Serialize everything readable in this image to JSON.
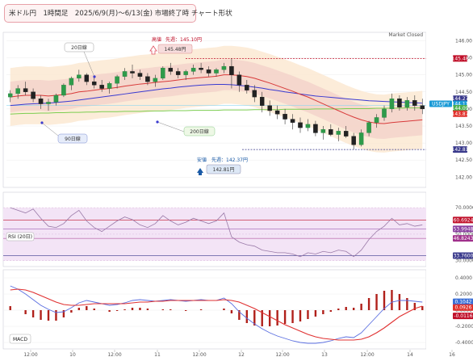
{
  "title": "米ドル円　1時間足　2025/6/9(月)～6/13(金) 市場終了時 チャート形状",
  "market_status": "Market Closed",
  "chart_data": [
    {
      "type": "candlestick",
      "panel": "price",
      "y_ticks": [
        "146.00",
        "145.50",
        "145.00",
        "144.50",
        "144.00",
        "143.50",
        "143.00",
        "142.50",
        "142.00"
      ],
      "ylim": [
        141.7,
        146.2
      ],
      "x_ticks": [
        "12:00",
        "10",
        "12:00",
        "11",
        "12:00",
        "12",
        "12:00",
        "13",
        "12:00",
        "14",
        "16"
      ],
      "candles": [
        [
          144.35,
          144.55,
          144.2,
          144.45
        ],
        [
          144.45,
          144.7,
          144.3,
          144.6
        ],
        [
          144.6,
          144.8,
          144.4,
          144.5
        ],
        [
          144.5,
          144.6,
          144.2,
          144.3
        ],
        [
          144.3,
          144.4,
          144.0,
          144.15
        ],
        [
          144.15,
          144.3,
          143.95,
          144.2
        ],
        [
          144.2,
          144.45,
          144.1,
          144.4
        ],
        [
          144.4,
          144.75,
          144.35,
          144.7
        ],
        [
          144.7,
          144.95,
          144.55,
          144.9
        ],
        [
          144.9,
          145.15,
          144.8,
          145.0
        ],
        [
          145.0,
          145.05,
          144.7,
          144.8
        ],
        [
          144.8,
          144.95,
          144.6,
          144.7
        ],
        [
          144.7,
          144.85,
          144.5,
          144.6
        ],
        [
          144.6,
          144.8,
          144.45,
          144.75
        ],
        [
          144.75,
          145.0,
          144.6,
          144.95
        ],
        [
          144.95,
          145.2,
          144.85,
          145.1
        ],
        [
          145.1,
          145.3,
          144.9,
          145.05
        ],
        [
          145.05,
          145.15,
          144.85,
          144.95
        ],
        [
          144.95,
          145.05,
          144.7,
          144.8
        ],
        [
          144.8,
          145.0,
          144.65,
          144.9
        ],
        [
          144.9,
          145.25,
          144.85,
          145.2
        ],
        [
          145.2,
          145.35,
          145.0,
          145.1
        ],
        [
          145.1,
          145.2,
          144.9,
          145.0
        ],
        [
          145.0,
          145.15,
          144.85,
          145.1
        ],
        [
          145.1,
          145.3,
          145.0,
          145.2
        ],
        [
          145.2,
          145.35,
          145.05,
          145.15
        ],
        [
          145.15,
          145.25,
          144.95,
          145.05
        ],
        [
          145.05,
          145.2,
          144.95,
          145.15
        ],
        [
          145.15,
          145.35,
          145.05,
          145.25
        ],
        [
          145.25,
          145.48,
          144.6,
          145.0
        ],
        [
          145.0,
          145.1,
          144.5,
          144.7
        ],
        [
          144.7,
          144.85,
          144.45,
          144.55
        ],
        [
          144.55,
          144.7,
          144.2,
          144.35
        ],
        [
          144.35,
          144.5,
          143.9,
          144.1
        ],
        [
          144.1,
          144.25,
          143.8,
          143.95
        ],
        [
          143.95,
          144.1,
          143.7,
          143.85
        ],
        [
          143.85,
          144.0,
          143.55,
          143.7
        ],
        [
          143.7,
          143.85,
          143.4,
          143.6
        ],
        [
          143.6,
          143.75,
          143.3,
          143.45
        ],
        [
          143.45,
          143.7,
          143.35,
          143.55
        ],
        [
          143.55,
          143.65,
          143.2,
          143.3
        ],
        [
          143.3,
          143.5,
          143.1,
          143.4
        ],
        [
          143.4,
          143.55,
          143.2,
          143.25
        ],
        [
          143.25,
          143.45,
          143.05,
          143.35
        ],
        [
          143.35,
          143.5,
          143.15,
          143.2
        ],
        [
          143.2,
          143.3,
          142.81,
          142.95
        ],
        [
          142.95,
          143.4,
          142.9,
          143.3
        ],
        [
          143.3,
          143.65,
          143.2,
          143.6
        ],
        [
          143.6,
          143.85,
          143.45,
          143.75
        ],
        [
          143.75,
          144.1,
          143.65,
          144.0
        ],
        [
          144.0,
          144.45,
          143.9,
          144.3
        ],
        [
          144.3,
          144.4,
          143.95,
          144.05
        ],
        [
          144.05,
          144.35,
          143.95,
          144.25
        ],
        [
          144.25,
          144.4,
          143.95,
          144.1
        ],
        [
          144.1,
          144.3,
          143.85,
          144.0
        ]
      ],
      "ma_20": [
        144.35,
        144.38,
        144.4,
        144.4,
        144.4,
        144.38,
        144.4,
        144.42,
        144.45,
        144.5,
        144.52,
        144.55,
        144.58,
        144.6,
        144.63,
        144.67,
        144.7,
        144.73,
        144.75,
        144.78,
        144.8,
        144.82,
        144.85,
        144.88,
        144.9,
        144.92,
        144.94,
        144.96,
        145.0,
        145.0,
        144.98,
        144.95,
        144.9,
        144.83,
        144.76,
        144.68,
        144.6,
        144.52,
        144.43,
        144.35,
        144.25,
        144.15,
        144.05,
        143.95,
        143.85,
        143.76,
        143.68,
        143.62,
        143.58,
        143.57,
        143.6,
        143.62,
        143.64,
        143.66,
        143.68
      ],
      "ma_90": [
        144.1,
        144.12,
        144.14,
        144.15,
        144.16,
        144.17,
        144.19,
        144.21,
        144.23,
        144.26,
        144.29,
        144.32,
        144.35,
        144.38,
        144.41,
        144.44,
        144.47,
        144.5,
        144.53,
        144.56,
        144.59,
        144.61,
        144.64,
        144.66,
        144.68,
        144.7,
        144.71,
        144.72,
        144.72,
        144.71,
        144.69,
        144.67,
        144.64,
        144.61,
        144.57,
        144.54,
        144.5,
        144.47,
        144.44,
        144.41,
        144.38,
        144.36,
        144.34,
        144.32,
        144.3,
        144.28,
        144.26,
        144.24,
        144.23,
        144.22,
        144.21,
        144.2,
        144.19,
        144.18,
        144.17
      ],
      "ma_200": [
        143.85,
        143.86,
        143.87,
        143.87,
        143.88,
        143.88,
        143.89,
        143.89,
        143.9,
        143.9,
        143.91,
        143.91,
        143.92,
        143.92,
        143.92,
        143.93,
        143.93,
        143.93,
        143.94,
        143.94,
        143.94,
        143.95,
        143.95,
        143.95,
        143.96,
        143.96,
        143.96,
        143.96,
        143.97,
        143.97,
        143.97,
        143.97,
        143.98,
        143.98,
        143.98,
        143.98,
        143.99,
        143.99,
        143.99,
        143.99,
        144.0,
        144.0,
        144.0,
        144.0,
        144.01,
        144.01,
        144.01,
        144.01,
        144.02,
        144.02,
        144.02,
        144.02,
        144.03,
        144.03,
        144.03
      ],
      "price_tags": [
        {
          "label": "145.48",
          "value": 145.48,
          "color": "#c0102a"
        },
        {
          "label": "144.27",
          "value": 144.27,
          "color": "#3a3a8c"
        },
        {
          "label": "USDJPY",
          "value": 144.1,
          "color": "#1a9ad6"
        },
        {
          "label": "144.11",
          "value": 144.11,
          "color": "#1a9ad6"
        },
        {
          "label": "144.09",
          "value": 143.99,
          "color": "#4caf50"
        },
        {
          "label": "143.87",
          "value": 143.87,
          "color": "#e0302a"
        },
        {
          "label": "142.81",
          "value": 142.81,
          "color": "#3a3a8c"
        }
      ],
      "annotations": {
        "high_label": "高値",
        "high_prev_week": "先週：145.10円",
        "high_value": "145.48円",
        "low_label": "安値",
        "low_prev_week": "先週：142.37円",
        "low_value": "142.81円",
        "ma20_label": "20日線",
        "ma90_label": "90日線",
        "ma200_label": "200日線"
      }
    },
    {
      "type": "line",
      "panel": "rsi",
      "label": "RSI (20日)",
      "y_ticks": [
        "70.0000",
        "50.0000",
        "30.0000"
      ],
      "ylim": [
        28,
        78
      ],
      "levels": [
        {
          "label": "60.6924",
          "value": 60.69,
          "color": "#c0102a"
        },
        {
          "label": "53.9948",
          "value": 53.99,
          "color": "#8a3fa0"
        },
        {
          "label": "46.8243",
          "value": 46.82,
          "color": "#a0308c"
        },
        {
          "label": "33.7600",
          "value": 33.76,
          "color": "#3a3a8c"
        }
      ],
      "values": [
        70,
        68,
        66,
        69,
        62,
        56,
        55,
        58,
        64,
        68,
        60,
        55,
        52,
        56,
        60,
        63,
        61,
        57,
        55,
        58,
        64,
        60,
        57,
        59,
        62,
        60,
        58,
        60,
        66,
        48,
        44,
        42,
        41,
        38,
        37,
        36,
        36,
        35,
        33,
        36,
        35,
        37,
        36,
        38,
        37,
        33,
        38,
        46,
        52,
        56,
        62,
        57,
        58,
        56,
        57
      ]
    },
    {
      "type": "line",
      "panel": "macd",
      "label": "MACD",
      "y_ticks": [
        "0.4000",
        "0.2000",
        "0.0000",
        "-0.2000",
        "-0.4000"
      ],
      "ylim": [
        -0.46,
        0.46
      ],
      "levels": [
        {
          "label": "0.1042",
          "value": 0.1042,
          "color": "#3a6ed6"
        },
        {
          "label": "0.0926",
          "value": 0.0926,
          "color": "#e0302a"
        },
        {
          "label": "-0.0116",
          "value": -0.0116,
          "color": "#c0102a"
        }
      ],
      "macd": [
        0.3,
        0.26,
        0.2,
        0.13,
        0.06,
        0.01,
        -0.03,
        -0.02,
        0.03,
        0.09,
        0.12,
        0.1,
        0.08,
        0.06,
        0.07,
        0.09,
        0.12,
        0.13,
        0.12,
        0.11,
        0.12,
        0.13,
        0.12,
        0.11,
        0.12,
        0.13,
        0.12,
        0.12,
        0.15,
        0.08,
        -0.02,
        -0.1,
        -0.17,
        -0.23,
        -0.28,
        -0.32,
        -0.35,
        -0.38,
        -0.4,
        -0.41,
        -0.41,
        -0.4,
        -0.38,
        -0.35,
        -0.33,
        -0.34,
        -0.28,
        -0.18,
        -0.08,
        0.02,
        0.1,
        0.12,
        0.12,
        0.11,
        0.1
      ],
      "signal": [
        0.25,
        0.26,
        0.25,
        0.22,
        0.18,
        0.14,
        0.1,
        0.07,
        0.06,
        0.06,
        0.07,
        0.08,
        0.08,
        0.08,
        0.08,
        0.08,
        0.09,
        0.1,
        0.1,
        0.11,
        0.11,
        0.12,
        0.12,
        0.12,
        0.12,
        0.12,
        0.12,
        0.12,
        0.13,
        0.12,
        0.1,
        0.06,
        0.02,
        -0.03,
        -0.08,
        -0.13,
        -0.18,
        -0.22,
        -0.26,
        -0.3,
        -0.33,
        -0.35,
        -0.36,
        -0.37,
        -0.37,
        -0.37,
        -0.36,
        -0.33,
        -0.28,
        -0.22,
        -0.15,
        -0.08,
        -0.03,
        0.02,
        0.05
      ]
    }
  ]
}
